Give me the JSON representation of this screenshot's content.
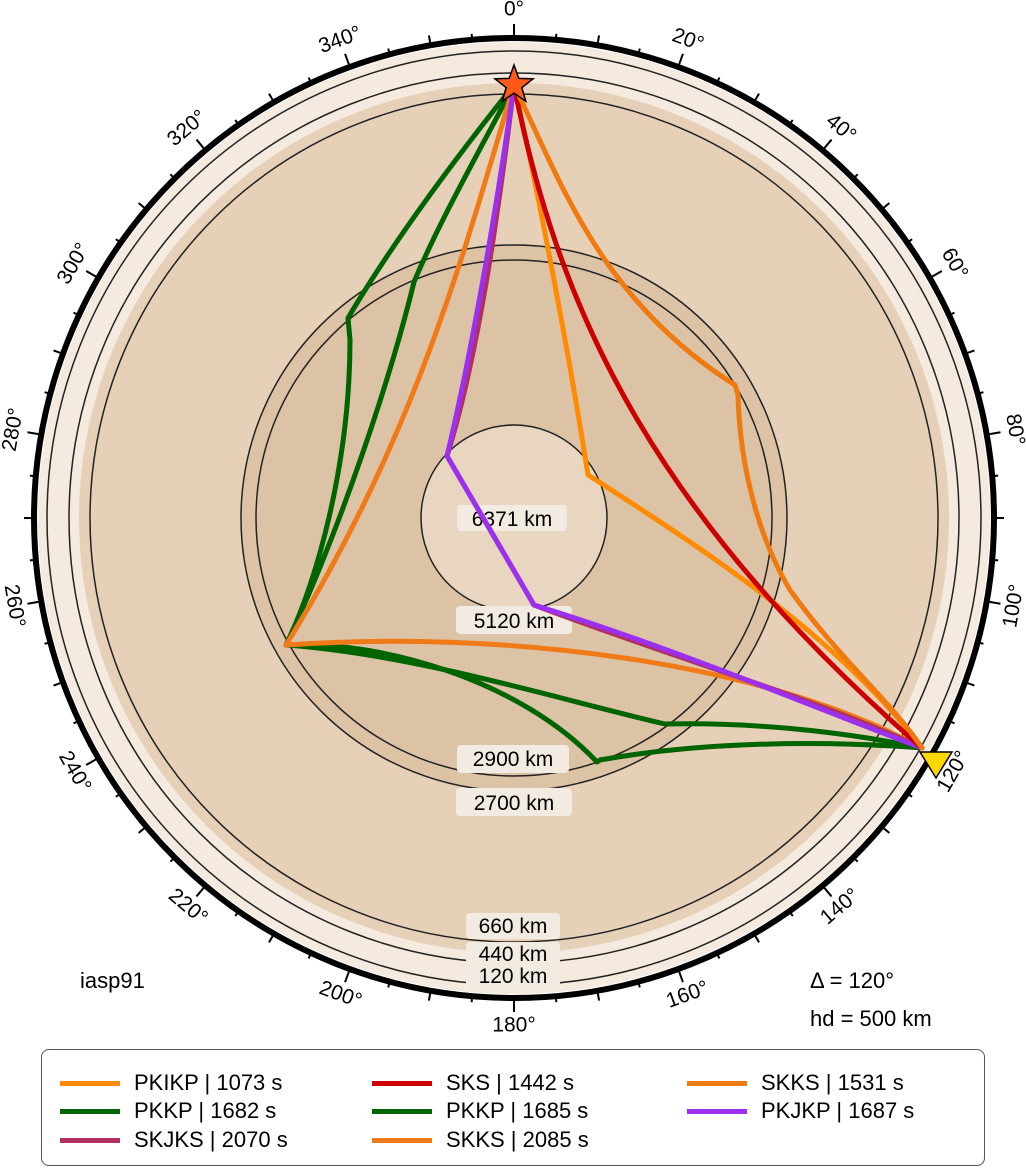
{
  "model_label": "iasp91",
  "delta_label": "Δ = 120°",
  "depth_label": "hd = 500 km",
  "angle_labels": [
    "0°",
    "20°",
    "40°",
    "60°",
    "80°",
    "100°",
    "120°",
    "140°",
    "160°",
    "180°",
    "200°",
    "220°",
    "240°",
    "260°",
    "280°",
    "300°",
    "320°",
    "340°"
  ],
  "depth_labels": {
    "d6371": "6371 km",
    "d5120": "5120 km",
    "d2900": "2900 km",
    "d2700": "2700 km",
    "d660": "660 km",
    "d440": "440 km",
    "d120": "120 km"
  },
  "colors": {
    "PKIKP": "#ff8c00",
    "SKS": "#cc0000",
    "SKKS_1531": "#ef7a0f",
    "PKKP_1682": "#006400",
    "PKKP_1685": "#006400",
    "PKJKP": "#9b30ef",
    "SKJKS": "#b03060",
    "SKKS_2085": "#f07a18",
    "event_star": "#ff5a1a",
    "station_triangle": "#ffd700"
  },
  "legend": [
    {
      "label": "PKIKP | 1073 s",
      "color": "#ff8c00"
    },
    {
      "label": "SKS | 1442 s",
      "color": "#cc0000"
    },
    {
      "label": "SKKS | 1531 s",
      "color": "#ef7a0f"
    },
    {
      "label": "PKKP | 1682 s",
      "color": "#006400"
    },
    {
      "label": "PKKP | 1685 s",
      "color": "#006400"
    },
    {
      "label": "PKJKP | 1687 s",
      "color": "#9b30ef"
    },
    {
      "label": "SKJKS | 2070 s",
      "color": "#b03060"
    },
    {
      "label": "SKKS | 2085 s",
      "color": "#f07a18"
    }
  ]
}
